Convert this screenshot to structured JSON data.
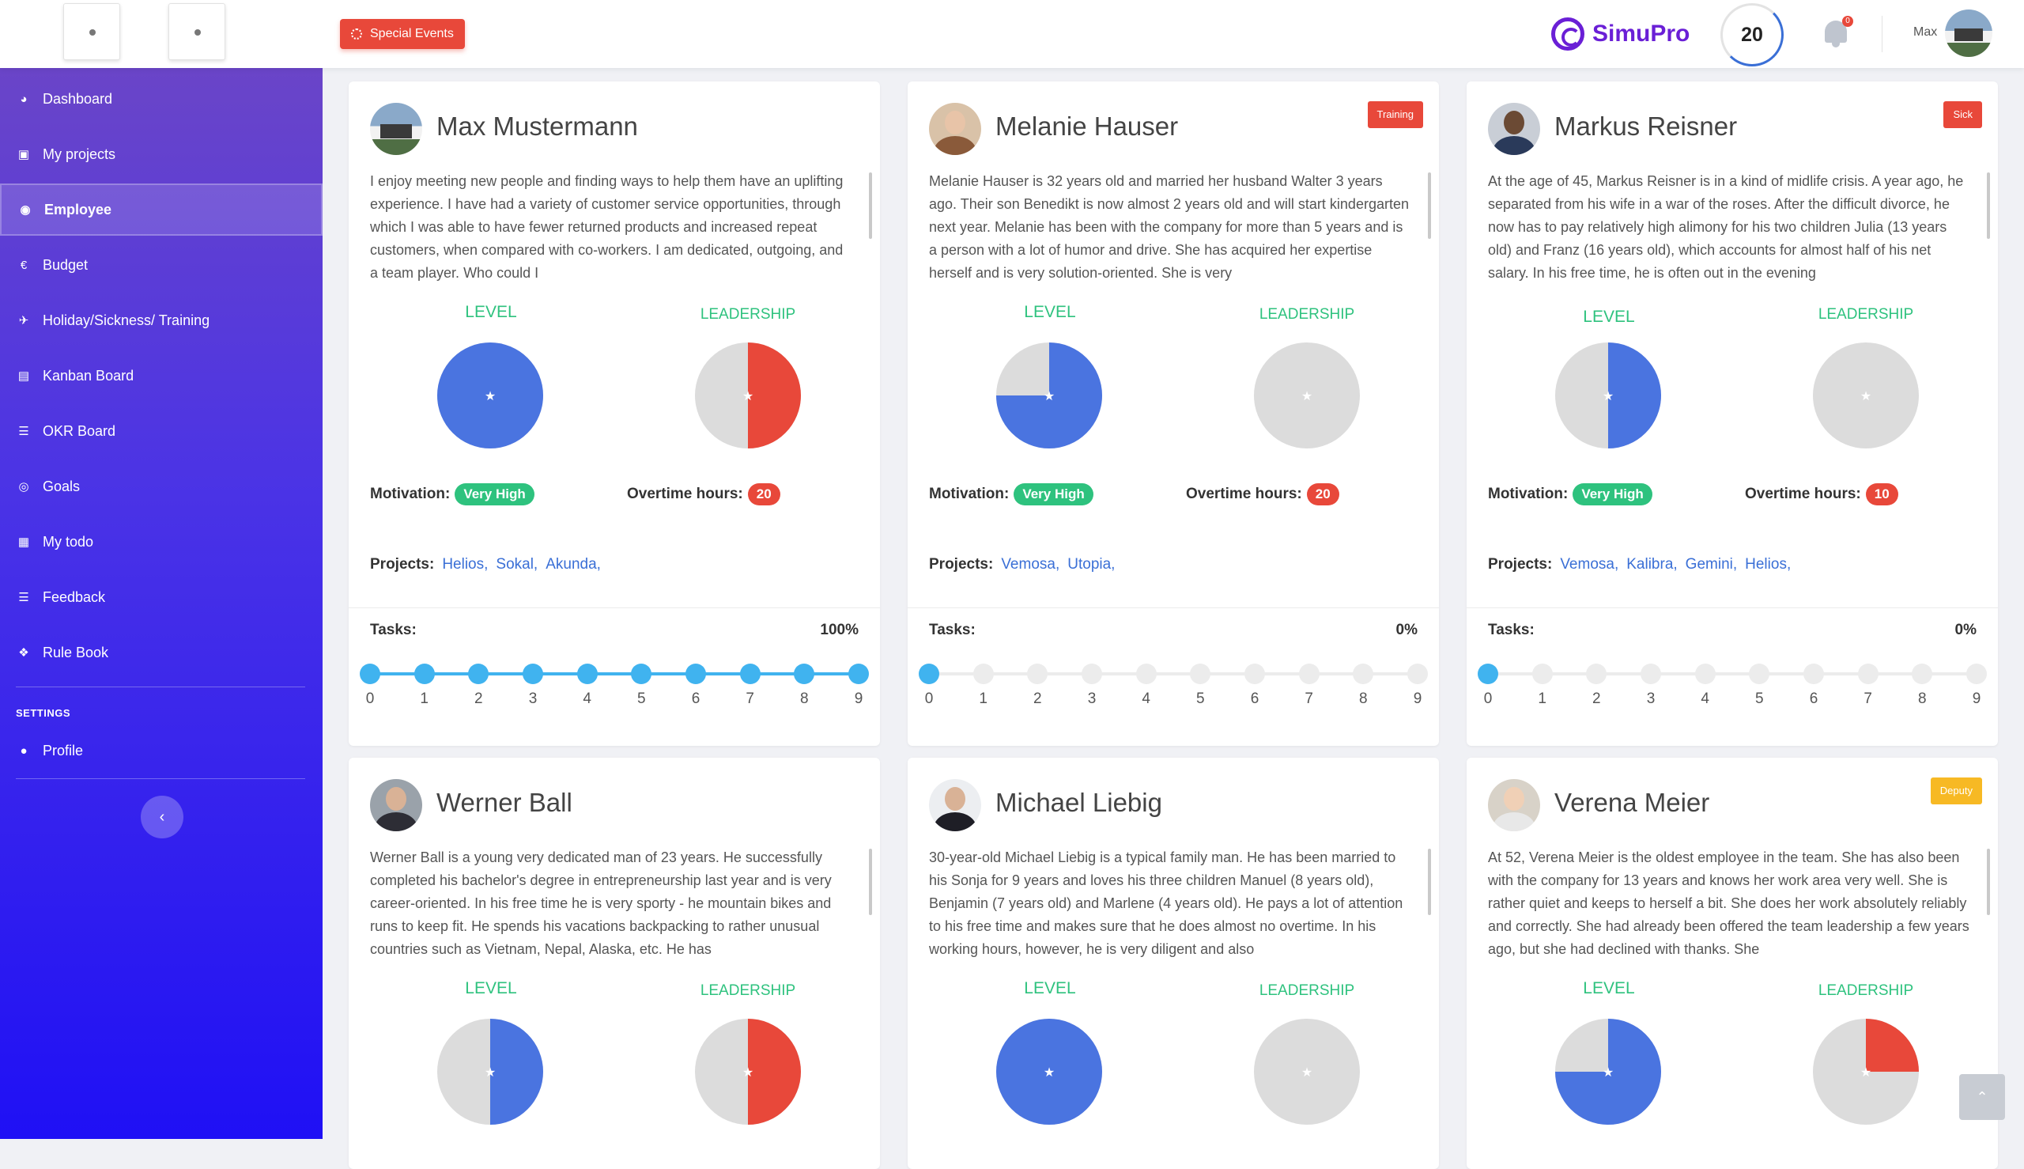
{
  "topbar": {
    "special_events_label": "Special Events",
    "logo_text": "SimuPro",
    "score": "20",
    "notification_count": "0",
    "user_name": "Max"
  },
  "sidebar": {
    "items": [
      {
        "label": "Dashboard",
        "icon": "gauge-icon"
      },
      {
        "label": "My projects",
        "icon": "briefcase-icon"
      },
      {
        "label": "Employee",
        "icon": "users-icon",
        "active": true
      },
      {
        "label": "Budget",
        "icon": "euro-icon"
      },
      {
        "label": "Holiday/Sickness/ Training",
        "icon": "plane-icon"
      },
      {
        "label": "Kanban Board",
        "icon": "board-icon"
      },
      {
        "label": "OKR Board",
        "icon": "menu-icon"
      },
      {
        "label": "Goals",
        "icon": "target-icon"
      },
      {
        "label": "My todo",
        "icon": "calendar-icon"
      },
      {
        "label": "Feedback",
        "icon": "layers-icon"
      },
      {
        "label": "Rule Book",
        "icon": "handshake-icon"
      }
    ],
    "settings_title": "SETTINGS",
    "settings_items": [
      {
        "label": "Profile",
        "icon": "user-icon"
      }
    ]
  },
  "labels": {
    "level": "LEVEL",
    "leadership": "LEADERSHIP",
    "motivation": "Motivation:",
    "overtime": "Overtime hours:",
    "projects": "Projects:",
    "tasks": "Tasks:"
  },
  "colors": {
    "level_fill": "#4a74e0",
    "leadership_fill": "#e8483a",
    "pie_bg": "#dcdcdc",
    "badge_training": "#e8483a",
    "badge_sick": "#e8483a",
    "badge_deputy": "#f7b924"
  },
  "employees": [
    {
      "name": "Max Mustermann",
      "avatar": "house-photo",
      "badge": "",
      "description": "I enjoy meeting new people and finding ways to help them have an uplifting experience. I have had a variety of customer service opportunities, through which I was able to have fewer returned products and increased repeat customers, when compared with co-workers. I am dedicated, outgoing, and a team player. Who could I",
      "level": 1.0,
      "leadership": 0.5,
      "motivation": "Very High",
      "overtime": "20",
      "projects": [
        "Helios,",
        "Sokal,",
        "Akunda,"
      ],
      "tasks_pct": "100%",
      "tasks_done": 10,
      "steps": [
        "0",
        "1",
        "2",
        "3",
        "4",
        "5",
        "6",
        "7",
        "8",
        "9"
      ]
    },
    {
      "name": "Melanie Hauser",
      "avatar": "woman-photo",
      "badge": "Training",
      "description": "Melanie Hauser is 32 years old and married her husband Walter 3 years ago. Their son Benedikt is now almost 2 years old and will start kindergarten next year. Melanie has been with the company for more than 5 years and is a person with a lot of humor and drive. She has acquired her expertise herself and is very solution-oriented. She is very",
      "level": 0.75,
      "leadership": 0.0,
      "motivation": "Very High",
      "overtime": "20",
      "projects": [
        "Vemosa,",
        "Utopia,"
      ],
      "tasks_pct": "0%",
      "tasks_done": 1,
      "steps": [
        "0",
        "1",
        "2",
        "3",
        "4",
        "5",
        "6",
        "7",
        "8",
        "9"
      ]
    },
    {
      "name": "Markus Reisner",
      "avatar": "man-suit-photo",
      "badge": "Sick",
      "description": "At the age of 45, Markus Reisner is in a kind of midlife crisis. A year ago, he separated from his wife in a war of the roses. After the difficult divorce, he now has to pay relatively high alimony for his two children Julia (13 years old) and Franz (16 years old), which accounts for almost half of his net salary. In his free time, he is often out in the evening",
      "level": 0.5,
      "leadership": 0.0,
      "motivation": "Very High",
      "overtime": "10",
      "projects": [
        "Vemosa,",
        "Kalibra,",
        "Gemini,",
        "Helios,"
      ],
      "tasks_pct": "0%",
      "tasks_done": 1,
      "steps": [
        "0",
        "1",
        "2",
        "3",
        "4",
        "5",
        "6",
        "7",
        "8",
        "9"
      ]
    },
    {
      "name": "Werner Ball",
      "avatar": "young-man-photo",
      "badge": "",
      "description": "Werner Ball is a young very dedicated man of 23 years. He successfully completed his bachelor's degree in entrepreneurship last year and is very career-oriented. In his free time he is very sporty - he mountain bikes and runs to keep fit. He spends his vacations backpacking to rather unusual countries such as Vietnam, Nepal, Alaska, etc. He has",
      "level": 0.5,
      "leadership": 0.5,
      "motivation": "",
      "overtime": "",
      "projects": [],
      "tasks_pct": "",
      "tasks_done": 0,
      "steps": []
    },
    {
      "name": "Michael Liebig",
      "avatar": "man-tie-photo",
      "badge": "",
      "description": "30-year-old Michael Liebig is a typical family man. He has been married to his Sonja for 9 years and loves his three children Manuel (8 years old), Benjamin (7 years old) and Marlene (4 years old). He pays a lot of attention to his free time and makes sure that he does almost no overtime. In his working hours, however, he is very diligent and also",
      "level": 1.0,
      "leadership": 0.0,
      "motivation": "",
      "overtime": "",
      "projects": [],
      "tasks_pct": "",
      "tasks_done": 0,
      "steps": []
    },
    {
      "name": "Verena Meier",
      "avatar": "woman-elder-photo",
      "badge": "Deputy",
      "description": "At 52, Verena Meier is the oldest employee in the team. She has also been with the company for 13 years and knows her work area very well. She is rather quiet and keeps to herself a bit. She does her work absolutely reliably and correctly. She had already been offered the team leadership a few years ago, but she had declined with thanks. She",
      "level": 0.75,
      "leadership": 0.25,
      "motivation": "",
      "overtime": "",
      "projects": [],
      "tasks_pct": "",
      "tasks_done": 0,
      "steps": []
    }
  ]
}
